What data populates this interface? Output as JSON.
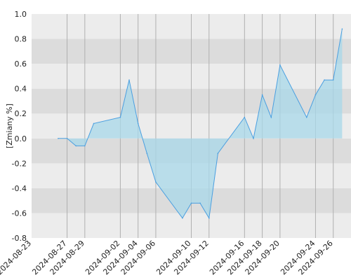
{
  "chart_data": {
    "type": "area",
    "title": "",
    "xlabel": "",
    "ylabel": "[Zmiany %]",
    "ylim": [
      -0.8,
      1.0
    ],
    "y_ticks": [
      "-0.8",
      "-0.6",
      "-0.4",
      "-0.2",
      "0.0",
      "0.2",
      "0.4",
      "0.6",
      "0.8",
      "1.0"
    ],
    "x_ticks": [
      "2024-08-23",
      "2024-08-27",
      "2024-08-29",
      "2024-09-02",
      "2024-09-04",
      "2024-09-06",
      "2024-09-10",
      "2024-09-12",
      "2024-09-16",
      "2024-09-18",
      "2024-09-20",
      "2024-09-24",
      "2024-09-26"
    ],
    "grid": true,
    "series": [
      {
        "color": "#4a9fe0",
        "fill": "#a8d8ea",
        "points": [
          [
            "2024-08-26",
            0.0
          ],
          [
            "2024-08-27",
            0.0
          ],
          [
            "2024-08-28",
            -0.06
          ],
          [
            "2024-08-29",
            -0.06
          ],
          [
            "2024-08-30",
            0.12
          ],
          [
            "2024-09-02",
            0.17
          ],
          [
            "2024-09-03",
            0.47
          ],
          [
            "2024-09-04",
            0.12
          ],
          [
            "2024-09-05",
            -0.12
          ],
          [
            "2024-09-06",
            -0.35
          ],
          [
            "2024-09-09",
            -0.64
          ],
          [
            "2024-09-10",
            -0.52
          ],
          [
            "2024-09-11",
            -0.52
          ],
          [
            "2024-09-12",
            -0.64
          ],
          [
            "2024-09-13",
            -0.12
          ],
          [
            "2024-09-16",
            0.17
          ],
          [
            "2024-09-17",
            0.0
          ],
          [
            "2024-09-18",
            0.35
          ],
          [
            "2024-09-19",
            0.17
          ],
          [
            "2024-09-20",
            0.59
          ],
          [
            "2024-09-23",
            0.17
          ],
          [
            "2024-09-24",
            0.35
          ],
          [
            "2024-09-25",
            0.47
          ],
          [
            "2024-09-26",
            0.47
          ],
          [
            "2024-09-27",
            0.88
          ]
        ]
      }
    ]
  }
}
